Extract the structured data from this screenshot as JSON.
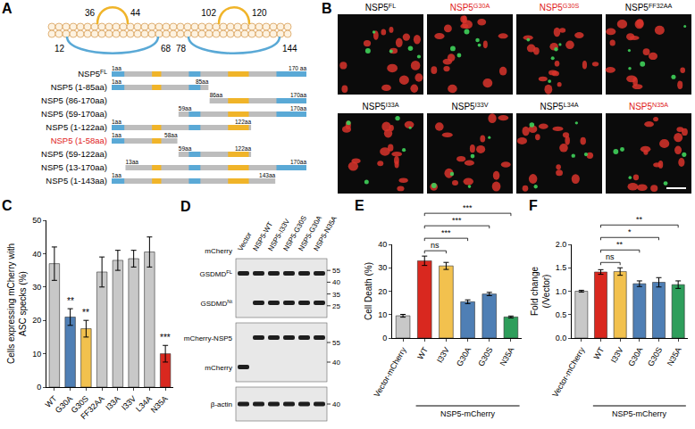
{
  "chart_data": [
    {
      "panel_label": "C",
      "type": "bar",
      "categories": [
        "WT",
        "G30A",
        "G30S",
        "FF32AA",
        "I33A",
        "I33V",
        "L34A",
        "N35A"
      ],
      "values": [
        37,
        21,
        17.5,
        34.5,
        38,
        38.5,
        40.5,
        10
      ],
      "errors": [
        5,
        2.5,
        2.5,
        4.5,
        3,
        2.5,
        4.5,
        2.5
      ],
      "colors": [
        "#c8c8c8",
        "#4f7fb5",
        "#f2c14e",
        "#c8c8c8",
        "#c8c8c8",
        "#c8c8c8",
        "#c8c8c8",
        "#d9281f"
      ],
      "y_label": "Cells expressing mCherry with ASC specks (%)",
      "ylim": [
        0,
        50
      ],
      "yticks": [
        0,
        10,
        20,
        30,
        40,
        50
      ],
      "grid": false,
      "annotations": [
        {
          "category": "G30A",
          "text": "**"
        },
        {
          "category": "G30S",
          "text": "**"
        },
        {
          "category": "N35A",
          "text": "***"
        }
      ]
    },
    {
      "panel_label": "E",
      "type": "bar",
      "categories": [
        "Vector-mCherry",
        "WT",
        "I33V",
        "G30A",
        "G30S",
        "N35A"
      ],
      "values": [
        9.5,
        33,
        30.8,
        15.5,
        18.8,
        9
      ],
      "errors": [
        0.6,
        2,
        1.5,
        0.8,
        0.7,
        0.4
      ],
      "colors": [
        "#c8c8c8",
        "#d9281f",
        "#f2c14e",
        "#4f7fb5",
        "#4f7fb5",
        "#2e9e5b"
      ],
      "y_label": "Cell Death (%)",
      "ylim": [
        0,
        40
      ],
      "yticks": [
        0,
        10,
        20,
        30,
        40
      ],
      "grid": false,
      "group_label": {
        "text": "NSP5-mCherry",
        "from": "WT",
        "to": "N35A"
      },
      "comparisons": [
        {
          "from": "WT",
          "to": "I33V",
          "label": "ns"
        },
        {
          "from": "WT",
          "to": "G30A",
          "label": "***"
        },
        {
          "from": "WT",
          "to": "G30S",
          "label": "***"
        },
        {
          "from": "WT",
          "to": "N35A",
          "label": "***"
        }
      ]
    },
    {
      "panel_label": "F",
      "type": "bar",
      "categories": [
        "Vector-mCherry",
        "WT",
        "I33V",
        "G30A",
        "G30S",
        "N35A"
      ],
      "values": [
        1.0,
        1.41,
        1.42,
        1.16,
        1.19,
        1.14
      ],
      "errors": [
        0.02,
        0.05,
        0.08,
        0.06,
        0.1,
        0.08
      ],
      "colors": [
        "#c8c8c8",
        "#d9281f",
        "#f2c14e",
        "#4f7fb5",
        "#4f7fb5",
        "#2e9e5b"
      ],
      "y_label": "Fold change (/Vector)",
      "ylim": [
        0,
        2
      ],
      "yticks": [
        {
          "value": 0,
          "label": "0.0"
        },
        {
          "value": 0.5,
          "label": "0.5"
        },
        {
          "value": 1,
          "label": "1.0"
        },
        {
          "value": 1.5,
          "label": "1.5"
        },
        {
          "value": 2,
          "label": "2.0"
        }
      ],
      "grid": false,
      "group_label": {
        "text": "NSP5-mCherry",
        "from": "WT",
        "to": "N35A"
      },
      "comparisons": [
        {
          "from": "WT",
          "to": "I33V",
          "label": "ns"
        },
        {
          "from": "WT",
          "to": "G30A",
          "label": "**"
        },
        {
          "from": "WT",
          "to": "G30S",
          "label": "*"
        },
        {
          "from": "WT",
          "to": "N35A",
          "label": "**"
        }
      ]
    }
  ],
  "diagram_A": {
    "panel_label": "A",
    "topology": {
      "above": [
        {
          "from": 36,
          "to": 44
        },
        {
          "from": 102,
          "to": 120
        }
      ],
      "below": [
        {
          "from": 12,
          "to": 68
        },
        {
          "from": 78,
          "to": 144
        }
      ]
    },
    "length": 170,
    "domains": [
      {
        "start": 1,
        "end": 12,
        "color": "#5aa9d6"
      },
      {
        "start": 36,
        "end": 44,
        "color": "#f0b429"
      },
      {
        "start": 68,
        "end": 78,
        "color": "#5aa9d6"
      },
      {
        "start": 102,
        "end": 120,
        "color": "#f0b429"
      },
      {
        "start": 144,
        "end": 170,
        "color": "#5aa9d6"
      }
    ],
    "constructs": [
      {
        "name": "NSP5",
        "sup": "FL",
        "start": 1,
        "end": 170,
        "start_label": "1aa",
        "end_label": "170 aa",
        "color": "#000000"
      },
      {
        "name": "NSP5 (1-85aa)",
        "start": 1,
        "end": 85,
        "start_label": "1aa",
        "end_label": "85aa",
        "color": "#000000"
      },
      {
        "name": "NSP5 (86-170aa)",
        "start": 86,
        "end": 170,
        "start_label": "86aa",
        "end_label": "170aa",
        "color": "#000000"
      },
      {
        "name": "NSP5 (59-170aa)",
        "start": 59,
        "end": 170,
        "start_label": "59aa",
        "end_label": "170aa",
        "color": "#000000"
      },
      {
        "name": "NSP5 (1-122aa)",
        "start": 1,
        "end": 122,
        "start_label": "1aa",
        "end_label": "122aa",
        "color": "#000000"
      },
      {
        "name": "NSP5 (1-58aa)",
        "start": 1,
        "end": 58,
        "start_label": "1aa",
        "end_label": "58aa",
        "color": "#e02020"
      },
      {
        "name": "NSP5 (59-122aa)",
        "start": 59,
        "end": 122,
        "start_label": "59aa",
        "end_label": "122aa",
        "color": "#000000"
      },
      {
        "name": "NSP5 (13-170aa)",
        "start": 13,
        "end": 170,
        "start_label": "13aa",
        "end_label": "170aa",
        "color": "#000000"
      },
      {
        "name": "NSP5 (1-143aa)",
        "start": 1,
        "end": 143,
        "start_label": "1aa",
        "end_label": "143aa",
        "color": "#000000"
      }
    ]
  },
  "images_B": {
    "panel_label": "B",
    "tiles": [
      {
        "name": "NSP5",
        "sup": "FL",
        "color": "#000000"
      },
      {
        "name": "NSP5",
        "sup": "G30A",
        "color": "#e02020"
      },
      {
        "name": "NSP5",
        "sup": "G30S",
        "color": "#e02020"
      },
      {
        "name": "NSP5",
        "sup": "FF32AA",
        "color": "#000000"
      },
      {
        "name": "NSP5",
        "sup": "I33A",
        "color": "#000000"
      },
      {
        "name": "NSP5",
        "sup": "I33V",
        "color": "#000000"
      },
      {
        "name": "NSP5",
        "sup": "L34A",
        "color": "#000000"
      },
      {
        "name": "NSP5",
        "sup": "N35A",
        "color": "#e02020"
      }
    ]
  },
  "blot_D": {
    "panel_label": "D",
    "header": "mCherry",
    "lanes": [
      "Vector",
      "NSP5-WT",
      "NSP5-I33V",
      "NSP5-G30S",
      "NSP5-G30A",
      "NSP5-N35A"
    ],
    "blots": [
      {
        "rows": [
          {
            "label": "GSDMD",
            "sup": "FL",
            "bands": [
              true,
              true,
              true,
              true,
              true,
              true
            ]
          },
          {
            "label": "GSDMD",
            "sup": "Nt",
            "bands": [
              false,
              true,
              true,
              true,
              true,
              true
            ]
          }
        ],
        "markers": [
          55,
          40,
          35,
          25
        ]
      },
      {
        "rows": [
          {
            "label": "mCherry-NSP5",
            "bands": [
              false,
              true,
              true,
              true,
              true,
              true
            ]
          },
          {
            "label": "mCherry",
            "bands": [
              true,
              false,
              false,
              false,
              false,
              false
            ]
          }
        ],
        "markers": [
          55,
          40
        ]
      },
      {
        "rows": [
          {
            "label": "β-actin",
            "bands": [
              true,
              true,
              true,
              true,
              true,
              true
            ]
          }
        ],
        "markers": [
          40
        ]
      }
    ]
  }
}
